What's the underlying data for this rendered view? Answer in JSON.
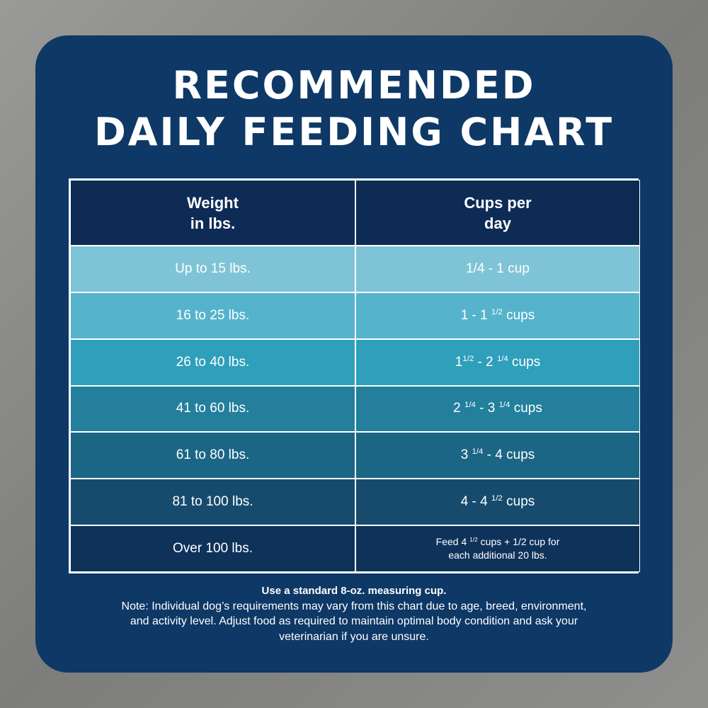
{
  "title": [
    "RECOMMENDED",
    "DAILY FEEDING CHART"
  ],
  "table": {
    "header": [
      [
        [
          {
            "text": "Weight"
          }
        ],
        [
          {
            "text": "in lbs."
          }
        ]
      ],
      [
        [
          {
            "text": "Cups per"
          }
        ],
        [
          {
            "text": "day"
          }
        ]
      ]
    ],
    "rows": [
      [
        [
          [
            {
              "text": "Up to 15 lbs."
            }
          ]
        ],
        [
          [
            {
              "text": "1/4 - 1 cup"
            }
          ]
        ]
      ],
      [
        [
          [
            {
              "text": "16 to 25 lbs."
            }
          ]
        ],
        [
          [
            {
              "text": "1 - 1 "
            },
            {
              "sup": "1/2"
            },
            {
              "text": " cups"
            }
          ]
        ]
      ],
      [
        [
          [
            {
              "text": "26 to 40 lbs."
            }
          ]
        ],
        [
          [
            {
              "text": "1"
            },
            {
              "sup": "1/2"
            },
            {
              "text": " - 2 "
            },
            {
              "sup": "1/4"
            },
            {
              "text": " cups"
            }
          ]
        ]
      ],
      [
        [
          [
            {
              "text": "41 to 60 lbs."
            }
          ]
        ],
        [
          [
            {
              "text": "2 "
            },
            {
              "sup": "1/4"
            },
            {
              "text": " - 3 "
            },
            {
              "sup": "1/4"
            },
            {
              "text": " cups"
            }
          ]
        ]
      ],
      [
        [
          [
            {
              "text": "61 to 80 lbs."
            }
          ]
        ],
        [
          [
            {
              "text": "3 "
            },
            {
              "sup": "1/4"
            },
            {
              "text": " - 4 cups"
            }
          ]
        ]
      ],
      [
        [
          [
            {
              "text": "81 to 100 lbs."
            }
          ]
        ],
        [
          [
            {
              "text": "4 - 4 "
            },
            {
              "sup": "1/2"
            },
            {
              "text": " cups"
            }
          ]
        ]
      ],
      [
        [
          [
            {
              "text": "Over 100 lbs."
            }
          ]
        ],
        [
          [
            {
              "text": "Feed 4 "
            },
            {
              "sup": "1/2"
            },
            {
              "text": " cups + 1/2 cup for"
            }
          ],
          [
            {
              "text": "each additional 20 lbs."
            }
          ]
        ]
      ]
    ]
  },
  "footer": {
    "bold": "Use a standard 8-oz. measuring cup.",
    "note": [
      "Note: Individual dog’s requirements may vary from this chart due to age, breed, environment,",
      "and activity level. Adjust food as required to maintain optimal body condition and ask your",
      "veterinarian if you are unsure."
    ]
  }
}
